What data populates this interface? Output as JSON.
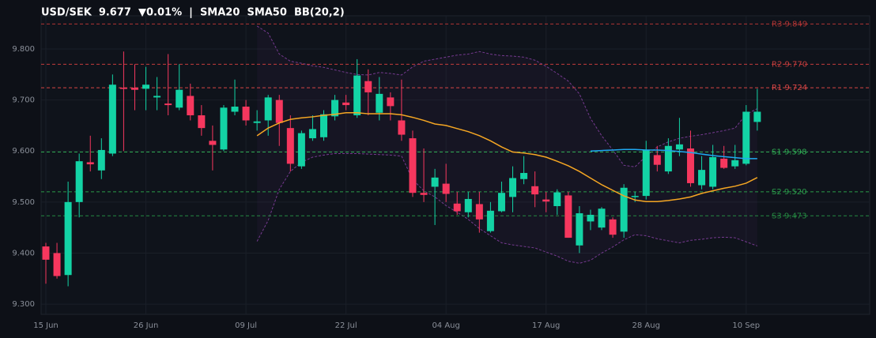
{
  "chart_data": {
    "type": "candlestick",
    "title": "USD/SEK  9.677  ▼0.01%  |  SMA20  SMA50  BB(20,2)",
    "categories": [
      "15 Jun",
      null,
      null,
      null,
      null,
      null,
      null,
      null,
      null,
      "26 Jun",
      null,
      null,
      null,
      null,
      null,
      null,
      null,
      null,
      "09 Jul",
      null,
      null,
      null,
      null,
      null,
      null,
      null,
      null,
      "22 Jul",
      null,
      null,
      null,
      null,
      null,
      null,
      null,
      null,
      "04 Aug",
      null,
      null,
      null,
      null,
      null,
      null,
      null,
      null,
      "17 Aug",
      null,
      null,
      null,
      null,
      null,
      null,
      null,
      null,
      "28 Aug",
      null,
      null,
      null,
      null,
      null,
      null,
      null,
      null,
      "10 Sep",
      null
    ],
    "open": [
      9.413,
      9.4,
      9.357,
      9.5,
      9.578,
      9.562,
      9.595,
      9.724,
      9.724,
      9.722,
      9.705,
      9.693,
      9.685,
      9.708,
      9.67,
      9.62,
      9.603,
      9.677,
      9.687,
      9.655,
      9.66,
      9.7,
      9.645,
      9.57,
      9.625,
      9.627,
      9.668,
      9.695,
      9.67,
      9.737,
      9.675,
      9.705,
      9.66,
      9.625,
      9.518,
      9.53,
      9.536,
      9.497,
      9.48,
      9.496,
      9.443,
      9.482,
      9.51,
      9.545,
      9.531,
      9.505,
      9.492,
      9.513,
      9.415,
      9.462,
      9.45,
      9.466,
      9.442,
      9.51,
      9.512,
      9.592,
      9.56,
      9.603,
      9.605,
      9.533,
      9.53,
      9.585,
      9.57,
      9.575,
      9.657
    ],
    "high": [
      9.42,
      9.42,
      9.54,
      9.595,
      9.63,
      9.625,
      9.75,
      9.795,
      9.77,
      9.765,
      9.745,
      9.79,
      9.77,
      9.732,
      9.69,
      9.65,
      9.69,
      9.74,
      9.7,
      9.68,
      9.71,
      9.71,
      9.67,
      9.64,
      9.67,
      9.68,
      9.71,
      9.71,
      9.78,
      9.76,
      9.745,
      9.715,
      9.74,
      9.64,
      9.605,
      9.565,
      9.575,
      9.52,
      9.52,
      9.52,
      9.5,
      9.54,
      9.57,
      9.59,
      9.56,
      9.52,
      9.525,
      9.52,
      9.492,
      9.485,
      9.49,
      9.47,
      9.535,
      9.52,
      9.62,
      9.61,
      9.625,
      9.665,
      9.64,
      9.59,
      9.612,
      9.61,
      9.612,
      9.69,
      9.722
    ],
    "low": [
      9.34,
      9.35,
      9.335,
      9.47,
      9.56,
      9.545,
      9.59,
      9.6,
      9.68,
      9.68,
      9.68,
      9.67,
      9.68,
      9.66,
      9.63,
      9.562,
      9.6,
      9.67,
      9.65,
      9.64,
      9.63,
      9.61,
      9.56,
      9.565,
      9.62,
      9.62,
      9.66,
      9.68,
      9.665,
      9.67,
      9.66,
      9.66,
      9.62,
      9.51,
      9.5,
      9.455,
      9.5,
      9.475,
      9.47,
      9.44,
      9.44,
      9.48,
      9.48,
      9.535,
      9.49,
      9.48,
      9.475,
      9.43,
      9.4,
      9.445,
      9.445,
      9.43,
      9.43,
      9.5,
      9.505,
      9.56,
      9.555,
      9.59,
      9.53,
      9.525,
      9.525,
      9.565,
      9.565,
      9.572,
      9.64
    ],
    "close": [
      9.387,
      9.355,
      9.5,
      9.58,
      9.574,
      9.602,
      9.73,
      9.722,
      9.72,
      9.73,
      9.708,
      9.69,
      9.72,
      9.67,
      9.645,
      9.612,
      9.685,
      9.687,
      9.66,
      9.658,
      9.705,
      9.655,
      9.575,
      9.635,
      9.643,
      9.672,
      9.7,
      9.69,
      9.748,
      9.715,
      9.712,
      9.688,
      9.632,
      9.518,
      9.514,
      9.548,
      9.516,
      9.482,
      9.506,
      9.466,
      9.483,
      9.518,
      9.547,
      9.557,
      9.515,
      9.501,
      9.519,
      9.43,
      9.478,
      9.475,
      9.487,
      9.436,
      9.528,
      9.512,
      9.602,
      9.573,
      9.61,
      9.613,
      9.537,
      9.563,
      9.588,
      9.567,
      9.582,
      9.677,
      9.677
    ],
    "up_color": "#13d3a5",
    "down_color": "#f6375e",
    "overlays": [
      {
        "color": "#f5a623",
        "values": [
          null,
          null,
          null,
          null,
          null,
          null,
          null,
          null,
          null,
          null,
          null,
          null,
          null,
          null,
          null,
          null,
          null,
          null,
          null,
          9.63,
          9.645,
          9.655,
          9.662,
          9.665,
          9.667,
          9.67,
          9.672,
          9.675,
          9.675,
          9.673,
          9.673,
          9.673,
          9.671,
          9.666,
          9.66,
          9.653,
          9.65,
          9.644,
          9.638,
          9.63,
          9.62,
          9.608,
          9.598,
          9.596,
          9.593,
          9.588,
          9.58,
          9.571,
          9.56,
          9.547,
          9.534,
          9.523,
          9.512,
          9.504,
          9.501,
          9.501,
          9.503,
          9.506,
          9.51,
          9.517,
          9.522,
          9.527,
          9.531,
          9.537,
          9.548
        ]
      },
      {
        "color": "#1fa8f0",
        "values": [
          null,
          null,
          null,
          null,
          null,
          null,
          null,
          null,
          null,
          null,
          null,
          null,
          null,
          null,
          null,
          null,
          null,
          null,
          null,
          null,
          null,
          null,
          null,
          null,
          null,
          null,
          null,
          null,
          null,
          null,
          null,
          null,
          null,
          null,
          null,
          null,
          null,
          null,
          null,
          null,
          null,
          null,
          null,
          null,
          null,
          null,
          null,
          null,
          null,
          9.6,
          9.601,
          9.602,
          9.603,
          9.603,
          9.602,
          9.602,
          9.601,
          9.599,
          9.597,
          9.594,
          9.591,
          9.589,
          9.587,
          9.585,
          9.585
        ]
      }
    ],
    "bands": {
      "color": "#8e44ad",
      "upper": [
        null,
        null,
        null,
        null,
        null,
        null,
        null,
        null,
        null,
        null,
        null,
        null,
        null,
        null,
        null,
        null,
        null,
        null,
        null,
        9.845,
        9.831,
        9.79,
        9.776,
        9.772,
        9.767,
        9.764,
        9.759,
        9.754,
        9.75,
        9.749,
        9.754,
        9.752,
        9.749,
        9.765,
        9.776,
        9.78,
        9.784,
        9.788,
        9.79,
        9.795,
        9.79,
        9.787,
        9.786,
        9.784,
        9.778,
        9.766,
        9.752,
        9.737,
        9.712,
        9.664,
        9.63,
        9.602,
        9.572,
        9.569,
        9.59,
        9.608,
        9.618,
        9.625,
        9.629,
        9.632,
        9.636,
        9.64,
        9.645,
        9.672,
        9.683
      ],
      "lower": [
        null,
        null,
        null,
        null,
        null,
        null,
        null,
        null,
        null,
        null,
        null,
        null,
        null,
        null,
        null,
        null,
        null,
        null,
        null,
        9.423,
        9.464,
        9.525,
        9.56,
        9.578,
        9.588,
        9.592,
        9.595,
        9.595,
        9.595,
        9.594,
        9.593,
        9.592,
        9.59,
        9.544,
        9.522,
        9.51,
        9.493,
        9.48,
        9.466,
        9.448,
        9.434,
        9.42,
        9.416,
        9.413,
        9.41,
        9.402,
        9.394,
        9.384,
        9.38,
        9.386,
        9.4,
        9.412,
        9.426,
        9.436,
        9.434,
        9.428,
        9.424,
        9.42,
        9.425,
        9.427,
        9.43,
        9.431,
        9.43,
        9.422,
        9.414
      ]
    },
    "levels": [
      {
        "name": "R3",
        "value": 9.849,
        "label": "9.849",
        "color": "#b03434"
      },
      {
        "name": "R2",
        "value": 9.77,
        "label": "9.770",
        "color": "#c43c3c"
      },
      {
        "name": "R1",
        "value": 9.724,
        "label": "9.724",
        "color": "#d64545"
      },
      {
        "name": "S1",
        "value": 9.598,
        "label": "9.598",
        "color": "#2eaa52"
      },
      {
        "name": "S2",
        "value": 9.52,
        "label": "9.520",
        "color": "#2a9a4a"
      },
      {
        "name": "S3",
        "value": 9.473,
        "label": "9.473",
        "color": "#258a42"
      }
    ],
    "ylim": [
      9.28,
      9.865
    ],
    "yticks": [
      {
        "value": 9.3,
        "label": "9.300"
      },
      {
        "value": 9.4,
        "label": "9.400"
      },
      {
        "value": 9.5,
        "label": "9.500"
      },
      {
        "value": 9.6,
        "label": "9.600"
      },
      {
        "value": 9.7,
        "label": "9.700"
      },
      {
        "value": 9.8,
        "label": "9.800"
      }
    ],
    "grid": true
  }
}
